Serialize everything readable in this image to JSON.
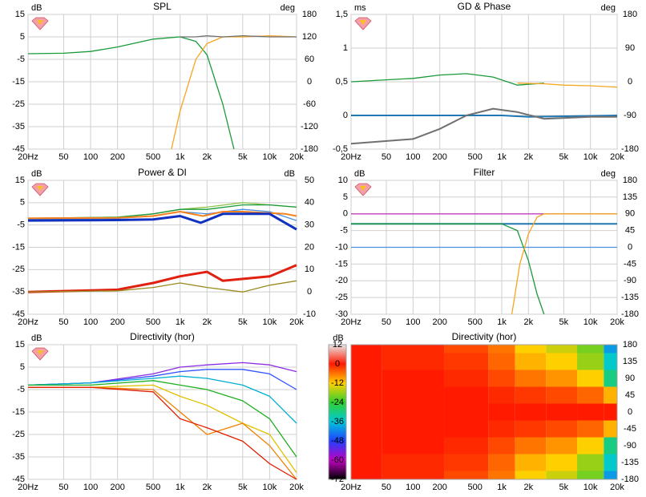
{
  "chart_data": [
    {
      "type": "line",
      "title": "SPL",
      "ylabel": "dB",
      "y2label": "deg",
      "xscale": "log",
      "xlim": [
        20,
        20000
      ],
      "xticks": [
        {
          "value": 20,
          "label": "20Hz"
        },
        50,
        100,
        200,
        500,
        {
          "value": 1000,
          "label": "1k"
        },
        {
          "value": 2000,
          "label": "2k"
        },
        {
          "value": 5000,
          "label": "5k"
        },
        {
          "value": 10000,
          "label": "10k"
        },
        {
          "value": 20000,
          "label": "20k"
        }
      ],
      "ylim": [
        -45,
        15
      ],
      "yticks": [
        15,
        5,
        -5,
        -15,
        -25,
        -35,
        -45
      ],
      "y2lim": [
        -180,
        180
      ],
      "y2ticks": [
        180,
        120,
        60,
        0,
        -60,
        -120,
        -180
      ],
      "grid": true,
      "series": [
        {
          "color": "#1a9a3a",
          "x": [
            20,
            50,
            100,
            200,
            500,
            1000,
            1500,
            2000,
            3000,
            4000
          ],
          "values": [
            -2.5,
            -2.3,
            -1.5,
            0.5,
            4,
            5,
            3,
            -3,
            -25,
            -45
          ]
        },
        {
          "color": "#f5a623",
          "x": [
            800,
            1000,
            1500,
            2000,
            3000,
            5000,
            10000,
            20000
          ],
          "values": [
            -45,
            -28,
            -5,
            2,
            5,
            5,
            5.5,
            5
          ]
        },
        {
          "color": "#707070",
          "x": [
            1000,
            1500,
            2000,
            3000,
            5000,
            10000,
            20000
          ],
          "values": [
            5,
            5,
            5.5,
            5,
            5.5,
            5,
            5
          ]
        }
      ]
    },
    {
      "type": "line",
      "title": "GD & Phase",
      "ylabel": "ms",
      "y2label": "deg",
      "xscale": "log",
      "xlim": [
        20,
        20000
      ],
      "xticks": [
        {
          "value": 20,
          "label": "20Hz"
        },
        50,
        100,
        200,
        500,
        {
          "value": 1000,
          "label": "1k"
        },
        {
          "value": 2000,
          "label": "2k"
        },
        {
          "value": 5000,
          "label": "5k"
        },
        {
          "value": 10000,
          "label": "10k"
        },
        {
          "value": 20000,
          "label": "20k"
        }
      ],
      "ylim": [
        -0.5,
        1.5
      ],
      "yticks": [
        {
          "value": 1.5,
          "label": "1,5"
        },
        1,
        {
          "value": 0.5,
          "label": "0,5"
        },
        0,
        {
          "value": -0.5,
          "label": "-0,5"
        }
      ],
      "y2lim": [
        -180,
        180
      ],
      "y2ticks": [
        180,
        90,
        0,
        -90,
        -180
      ],
      "grid": true,
      "series": [
        {
          "color": "#1a9a3a",
          "x": [
            20,
            100,
            200,
            400,
            800,
            1500,
            3000
          ],
          "values": [
            0.5,
            0.55,
            0.6,
            0.62,
            0.57,
            0.45,
            0.48
          ]
        },
        {
          "color": "#f5a623",
          "x": [
            1500,
            3000,
            5000,
            10000,
            20000
          ],
          "values": [
            0.48,
            0.47,
            0.45,
            0.44,
            0.42
          ]
        },
        {
          "color": "#1f77b4",
          "width": 2,
          "x": [
            20,
            1000,
            2000,
            20000
          ],
          "values": [
            0,
            0,
            -0.02,
            0
          ]
        },
        {
          "color": "#707070",
          "width": 2,
          "x": [
            20,
            100,
            200,
            400,
            800,
            1500,
            3000,
            10000,
            20000
          ],
          "values": [
            -0.42,
            -0.35,
            -0.2,
            0,
            0.1,
            0.05,
            -0.05,
            -0.02,
            -0.02
          ]
        }
      ]
    },
    {
      "type": "line",
      "title": "Power & DI",
      "ylabel": "dB",
      "y2label": "dB",
      "xscale": "log",
      "xlim": [
        20,
        20000
      ],
      "xticks": [
        {
          "value": 20,
          "label": "20Hz"
        },
        50,
        100,
        200,
        500,
        {
          "value": 1000,
          "label": "1k"
        },
        {
          "value": 2000,
          "label": "2k"
        },
        {
          "value": 5000,
          "label": "5k"
        },
        {
          "value": 10000,
          "label": "10k"
        },
        {
          "value": 20000,
          "label": "20k"
        }
      ],
      "ylim": [
        -45,
        15
      ],
      "yticks": [
        15,
        5,
        -5,
        -15,
        -25,
        -35,
        -45
      ],
      "y2lim": [
        -10,
        50
      ],
      "y2ticks": [
        50,
        40,
        30,
        20,
        10,
        0,
        -10
      ],
      "grid": true,
      "series": [
        {
          "color": "#8bc34a",
          "x": [
            20,
            200,
            500,
            1000,
            2000,
            5000,
            10000,
            20000
          ],
          "values": [
            -2,
            -1.5,
            0,
            2,
            3,
            5,
            4,
            3
          ]
        },
        {
          "color": "#1a9a3a",
          "x": [
            20,
            200,
            500,
            1000,
            2000,
            5000,
            10000,
            20000
          ],
          "values": [
            -2,
            -1.5,
            0,
            2,
            2,
            4,
            4,
            3
          ]
        },
        {
          "color": "#4a90e2",
          "x": [
            20,
            200,
            500,
            1000,
            2000,
            5000,
            10000,
            20000
          ],
          "values": [
            -2.5,
            -2,
            -1,
            1,
            0,
            2,
            1,
            -3
          ]
        },
        {
          "color": "#f5821f",
          "width": 2,
          "x": [
            20,
            200,
            500,
            1000,
            1800,
            3000,
            5000,
            15000,
            20000
          ],
          "values": [
            -2,
            -1.8,
            -1,
            1,
            -1,
            1,
            1,
            0,
            -1
          ]
        },
        {
          "color": "#1030c0",
          "width": 3,
          "x": [
            20,
            200,
            500,
            1000,
            1700,
            3000,
            10000,
            20000
          ],
          "values": [
            -3,
            -2.8,
            -2.5,
            -1,
            -4,
            0,
            0,
            -7
          ]
        },
        {
          "color": "#e02010",
          "width": 3,
          "axis": "y2",
          "x": [
            20,
            200,
            500,
            1000,
            2000,
            3000,
            10000,
            20000
          ],
          "values": [
            0,
            1,
            4,
            7,
            9,
            5,
            7,
            12
          ]
        },
        {
          "color": "#9a8a20",
          "axis": "y2",
          "x": [
            20,
            200,
            500,
            1000,
            2000,
            5000,
            10000,
            20000
          ],
          "values": [
            0,
            0.5,
            2,
            4,
            2,
            0,
            3,
            5
          ]
        }
      ]
    },
    {
      "type": "line",
      "title": "Filter",
      "ylabel": "dB",
      "y2label": "deg",
      "xscale": "log",
      "xlim": [
        20,
        20000
      ],
      "xticks": [
        {
          "value": 20,
          "label": "20Hz"
        },
        50,
        100,
        200,
        500,
        {
          "value": 1000,
          "label": "1k"
        },
        {
          "value": 2000,
          "label": "2k"
        },
        {
          "value": 5000,
          "label": "5k"
        },
        {
          "value": 10000,
          "label": "10k"
        },
        {
          "value": 20000,
          "label": "20k"
        }
      ],
      "ylim": [
        -30,
        10
      ],
      "yticks": [
        10,
        5,
        0,
        -5,
        -10,
        -15,
        -20,
        -25,
        -30
      ],
      "y2lim": [
        -180,
        180
      ],
      "y2ticks": [
        180,
        135,
        90,
        45,
        0,
        -45,
        -90,
        -135,
        -180
      ],
      "grid": true,
      "series": [
        {
          "color": "#c040c0",
          "x": [
            20,
            20000
          ],
          "values": [
            0,
            0
          ]
        },
        {
          "color": "#4a90e2",
          "x": [
            20,
            20000
          ],
          "values": [
            -10,
            -10
          ]
        },
        {
          "color": "#1f77b4",
          "width": 2,
          "x": [
            20,
            20000
          ],
          "values": [
            -3,
            -3
          ]
        },
        {
          "color": "#1a9a3a",
          "x": [
            20,
            1000,
            1500,
            2000,
            2500,
            3000
          ],
          "values": [
            -3,
            -3,
            -5,
            -14,
            -24,
            -30
          ]
        },
        {
          "color": "#f5a623",
          "x": [
            1300,
            1600,
            2000,
            2500,
            3000,
            20000
          ],
          "values": [
            -30,
            -15,
            -6,
            -1,
            0,
            0
          ]
        }
      ]
    },
    {
      "type": "line",
      "title": "Directivity (hor)",
      "ylabel": "dB",
      "xscale": "log",
      "xlim": [
        20,
        20000
      ],
      "xticks": [
        {
          "value": 20,
          "label": "20Hz"
        },
        50,
        100,
        200,
        500,
        {
          "value": 1000,
          "label": "1k"
        },
        {
          "value": 2000,
          "label": "2k"
        },
        {
          "value": 5000,
          "label": "5k"
        },
        {
          "value": 10000,
          "label": "10k"
        },
        {
          "value": 20000,
          "label": "20k"
        }
      ],
      "ylim": [
        -45,
        15
      ],
      "yticks": [
        15,
        5,
        -5,
        -15,
        -25,
        -35,
        -45
      ],
      "grid": true,
      "x": [
        20,
        100,
        500,
        1000,
        2000,
        5000,
        10000,
        20000
      ],
      "series": [
        {
          "color": "#8a2be2",
          "values": [
            -3,
            -2,
            2,
            5,
            6,
            7,
            6,
            3
          ]
        },
        {
          "color": "#3050ff",
          "values": [
            -3,
            -2,
            1,
            3,
            4,
            4,
            2,
            -5
          ]
        },
        {
          "color": "#00b0d0",
          "values": [
            -3,
            -2,
            0,
            1,
            0,
            -3,
            -8,
            -20
          ]
        },
        {
          "color": "#20b020",
          "values": [
            -3,
            -3,
            -1,
            -3,
            -5,
            -10,
            -18,
            -35
          ]
        },
        {
          "color": "#e0c000",
          "values": [
            -4,
            -4,
            -3,
            -8,
            -12,
            -20,
            -25,
            -42
          ]
        },
        {
          "color": "#f08000",
          "values": [
            -4,
            -4,
            -5,
            -15,
            -25,
            -20,
            -30,
            -45
          ]
        },
        {
          "color": "#e02000",
          "values": [
            -4,
            -4,
            -6,
            -18,
            -22,
            -28,
            -38,
            -45
          ]
        }
      ]
    },
    {
      "type": "heatmap",
      "title": "Directivity (hor)",
      "ylabel": "dB",
      "xscale": "log",
      "xlim": [
        20,
        20000
      ],
      "xticks": [
        {
          "value": 20,
          "label": "20Hz"
        },
        50,
        100,
        200,
        500,
        {
          "value": 1000,
          "label": "1k"
        },
        {
          "value": 2000,
          "label": "2k"
        },
        {
          "value": 5000,
          "label": "5k"
        },
        {
          "value": 10000,
          "label": "10k"
        },
        {
          "value": 20000,
          "label": "20k"
        }
      ],
      "ylim": [
        -180,
        180
      ],
      "yticks": [
        180,
        135,
        90,
        45,
        0,
        -45,
        -90,
        -135,
        -180
      ],
      "yaxis_side": "right",
      "zlim": [
        -72,
        12
      ],
      "zticks": [
        12,
        0,
        -12,
        -24,
        -36,
        -48,
        -60,
        -72
      ],
      "colors": [
        "#e8e8e8",
        "#ff1a00",
        "#ffd000",
        "#30d030",
        "#00c8d8",
        "#2040ff",
        "#c000c0",
        "#000000"
      ],
      "x": [
        20,
        100,
        500,
        1000,
        2000,
        5000,
        10000,
        20000
      ],
      "y": [
        180,
        135,
        90,
        45,
        0,
        -45,
        -90,
        -135,
        -180
      ],
      "z": [
        [
          0,
          -1,
          -3,
          -6,
          -12,
          -15,
          -20,
          -40
        ],
        [
          0,
          -1,
          -2,
          -5,
          -10,
          -12,
          -18,
          -35
        ],
        [
          0,
          0,
          -1,
          -3,
          -6,
          -8,
          -12,
          -30
        ],
        [
          0,
          0,
          0,
          -1,
          -2,
          -3,
          -5,
          -10
        ],
        [
          0,
          0,
          0,
          0,
          0,
          0,
          0,
          0
        ],
        [
          0,
          0,
          0,
          -1,
          -2,
          -3,
          -5,
          -10
        ],
        [
          0,
          0,
          -1,
          -3,
          -6,
          -8,
          -12,
          -30
        ],
        [
          0,
          -1,
          -2,
          -5,
          -10,
          -12,
          -18,
          -35
        ],
        [
          0,
          -1,
          -3,
          -6,
          -12,
          -15,
          -20,
          -40
        ]
      ]
    }
  ]
}
